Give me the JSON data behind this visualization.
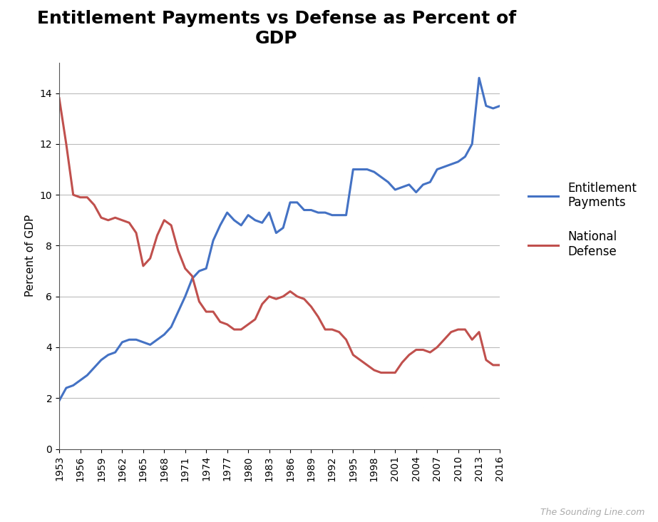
{
  "title": "Entitlement Payments vs Defense as Percent of\nGDP",
  "ylabel": "Percent of GDP",
  "background_color": "#ffffff",
  "line_color_entitlement": "#4472C4",
  "line_color_defense": "#C0504D",
  "watermark": "The Sounding Line.com",
  "years": [
    1953,
    1954,
    1955,
    1956,
    1957,
    1958,
    1959,
    1960,
    1961,
    1962,
    1963,
    1964,
    1965,
    1966,
    1967,
    1968,
    1969,
    1970,
    1971,
    1972,
    1973,
    1974,
    1975,
    1976,
    1977,
    1978,
    1979,
    1980,
    1981,
    1982,
    1983,
    1984,
    1985,
    1986,
    1987,
    1988,
    1989,
    1990,
    1991,
    1992,
    1993,
    1994,
    1995,
    1996,
    1997,
    1998,
    1999,
    2000,
    2001,
    2002,
    2003,
    2004,
    2005,
    2006,
    2007,
    2008,
    2009,
    2010,
    2011,
    2012,
    2013,
    2014,
    2015,
    2016
  ],
  "entitlement": [
    1.9,
    2.4,
    2.5,
    2.7,
    2.9,
    3.2,
    3.5,
    3.7,
    3.8,
    4.2,
    4.3,
    4.3,
    4.2,
    4.1,
    4.3,
    4.5,
    4.8,
    5.4,
    6.0,
    6.7,
    7.0,
    7.1,
    8.2,
    8.8,
    9.3,
    9.0,
    8.8,
    9.2,
    9.0,
    8.9,
    9.3,
    8.5,
    8.7,
    9.7,
    9.7,
    9.4,
    9.4,
    9.3,
    9.3,
    9.2,
    9.2,
    9.2,
    11.0,
    11.0,
    11.0,
    10.9,
    10.7,
    10.5,
    10.2,
    10.3,
    10.4,
    10.1,
    10.4,
    10.5,
    11.0,
    11.1,
    11.2,
    11.3,
    11.5,
    12.0,
    14.6,
    13.5,
    13.4,
    13.5
  ],
  "defense": [
    13.8,
    12.0,
    10.0,
    9.9,
    9.9,
    9.6,
    9.1,
    9.0,
    9.1,
    9.0,
    8.9,
    8.5,
    7.2,
    7.5,
    8.4,
    9.0,
    8.8,
    7.8,
    7.1,
    6.8,
    5.8,
    5.4,
    5.4,
    5.0,
    4.9,
    4.7,
    4.7,
    4.9,
    5.1,
    5.7,
    6.0,
    5.9,
    6.0,
    6.2,
    6.0,
    5.9,
    5.6,
    5.2,
    4.7,
    4.7,
    4.6,
    4.3,
    3.7,
    3.5,
    3.3,
    3.1,
    3.0,
    3.0,
    3.0,
    3.4,
    3.7,
    3.9,
    3.9,
    3.8,
    4.0,
    4.3,
    4.6,
    4.7,
    4.7,
    4.3,
    4.6,
    3.5,
    3.3,
    3.3
  ],
  "yticks": [
    0,
    2,
    4,
    6,
    8,
    10,
    12,
    14
  ],
  "ylim": [
    0,
    15.2
  ],
  "title_fontsize": 18,
  "axis_label_fontsize": 11,
  "tick_fontsize": 10,
  "legend_fontsize": 12
}
